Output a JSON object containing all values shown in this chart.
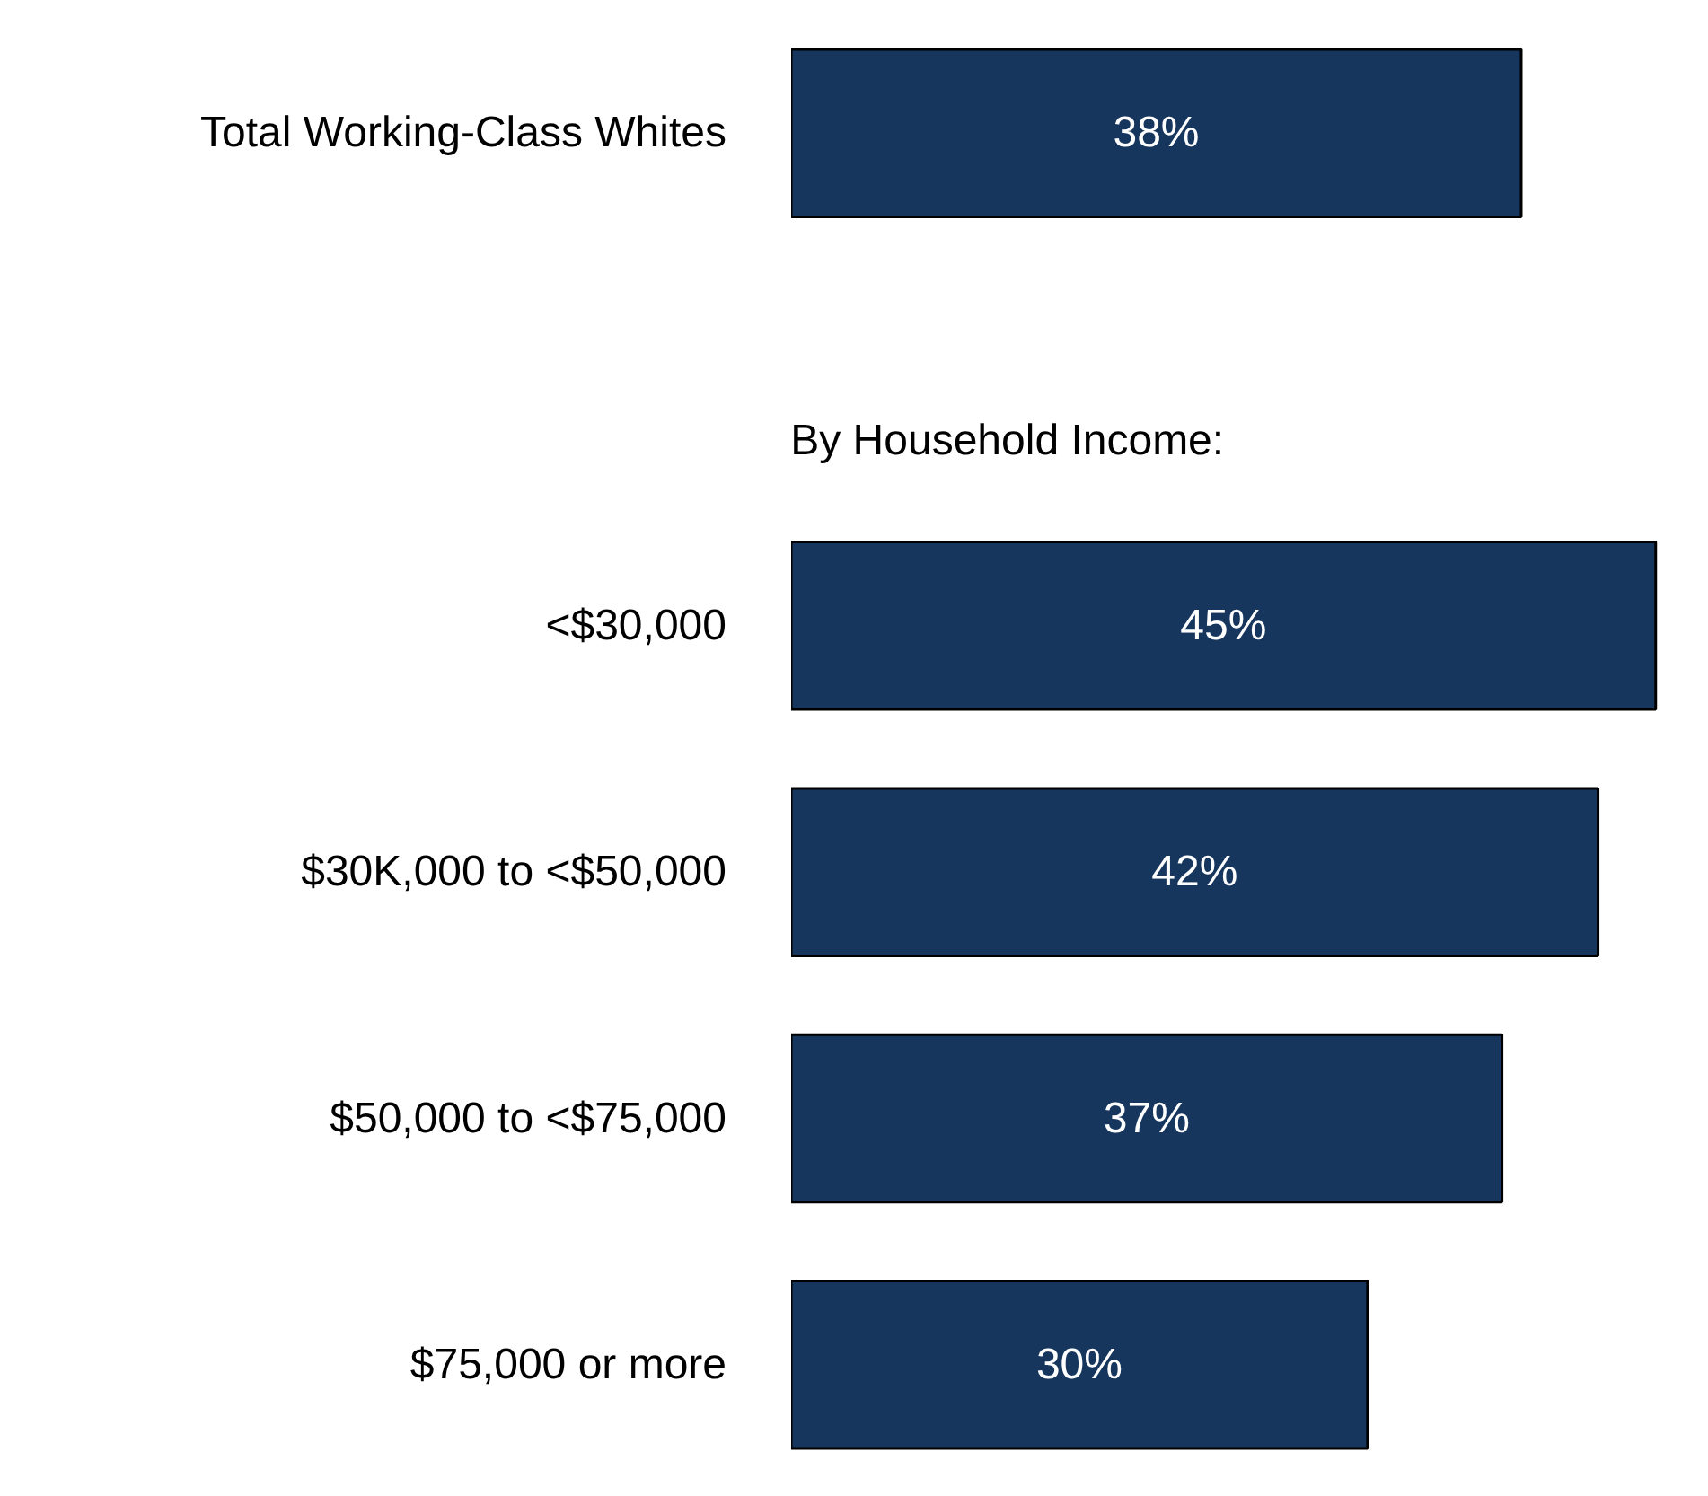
{
  "chart_data": {
    "type": "bar",
    "orientation": "horizontal",
    "categories": [
      "Total Working-Class Whites",
      null,
      "<$30,000",
      "$30K,000 to <$50,000",
      "$50,000 to <$75,000",
      "$75,000 or more"
    ],
    "values": [
      38,
      null,
      45,
      42,
      37,
      30
    ],
    "color": "#17365d",
    "value_labels": [
      "38%",
      null,
      "45%",
      "42%",
      "37%",
      "30%"
    ],
    "annotations": [
      "By Household Income:"
    ]
  }
}
